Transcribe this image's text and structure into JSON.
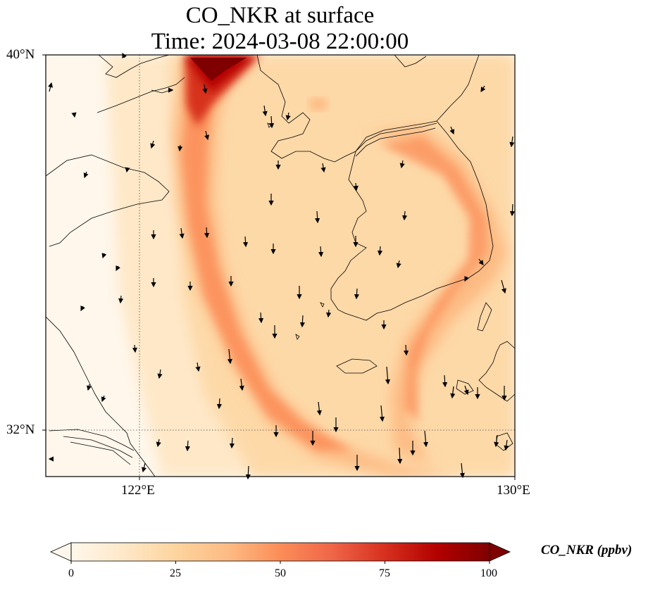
{
  "title": {
    "line1": "CO_NKR at surface",
    "line2": "Time: 2024-03-08 22:00:00"
  },
  "map": {
    "lon_range": [
      120,
      130
    ],
    "lat_range": [
      31,
      40
    ],
    "lat_labels": [
      "40°N",
      "32°N"
    ],
    "lon_labels": [
      "122°E",
      "130°E"
    ],
    "gridlines": {
      "lon": [
        122
      ],
      "lat": [
        32
      ]
    },
    "features": [
      "coastlines",
      "country-borders",
      "wind-vectors"
    ],
    "plume_core_location": "northern Yellow Sea near Liaodong Peninsula, ~40°N 124°E"
  },
  "colorbar": {
    "label": "CO_NKR (ppbv)",
    "ticks": [
      "0",
      "25",
      "50",
      "75",
      "100"
    ],
    "range": [
      0,
      100
    ],
    "colormap": "OrRd",
    "extend": "both",
    "colors": [
      "#fff7ec",
      "#fee8c8",
      "#fdd49e",
      "#fdbb84",
      "#fc8d59",
      "#ef6548",
      "#d7301f",
      "#b30000",
      "#7f0000"
    ]
  }
}
